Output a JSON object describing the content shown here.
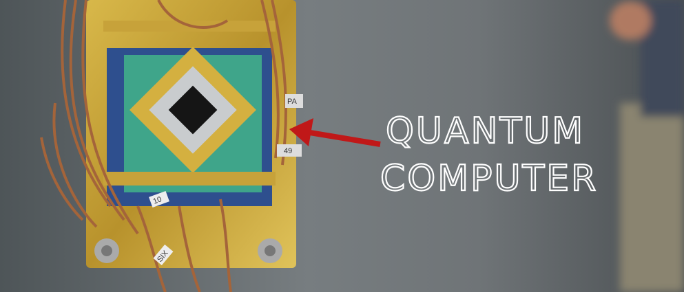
{
  "overlay": {
    "line1": "QUANTUM",
    "line2": "COMPUTER"
  },
  "chip_labels": [
    "10",
    "SIX",
    "PA",
    "49"
  ]
}
